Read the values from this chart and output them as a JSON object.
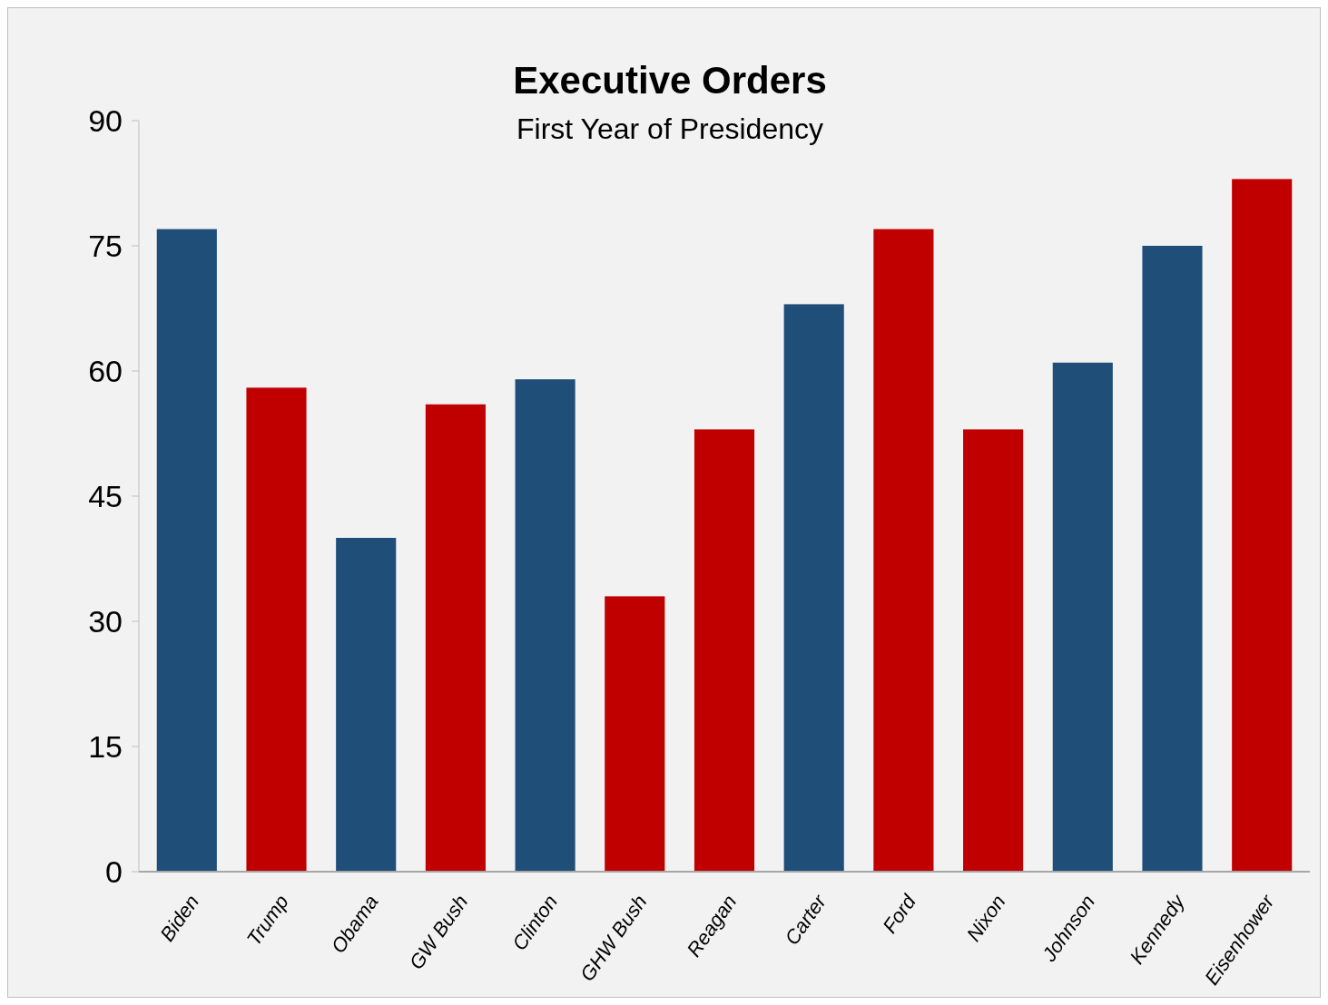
{
  "chart_data": {
    "type": "bar",
    "title": "Executive Orders",
    "subtitle": "First Year of Presidency",
    "categories": [
      "Biden",
      "Trump",
      "Obama",
      "GW Bush",
      "Clinton",
      "GHW Bush",
      "Reagan",
      "Carter",
      "Ford",
      "Nixon",
      "Johnson",
      "Kennedy",
      "Eisenhower"
    ],
    "values": [
      77,
      58,
      40,
      56,
      59,
      33,
      53,
      68,
      77,
      53,
      61,
      75,
      83
    ],
    "colors": [
      "#1f4e79",
      "#c00000",
      "#1f4e79",
      "#c00000",
      "#1f4e79",
      "#c00000",
      "#c00000",
      "#1f4e79",
      "#c00000",
      "#c00000",
      "#1f4e79",
      "#1f4e79",
      "#c00000"
    ],
    "ylim": [
      0,
      90
    ],
    "yticks": [
      0,
      15,
      30,
      45,
      60,
      75,
      90
    ],
    "grid": false
  }
}
